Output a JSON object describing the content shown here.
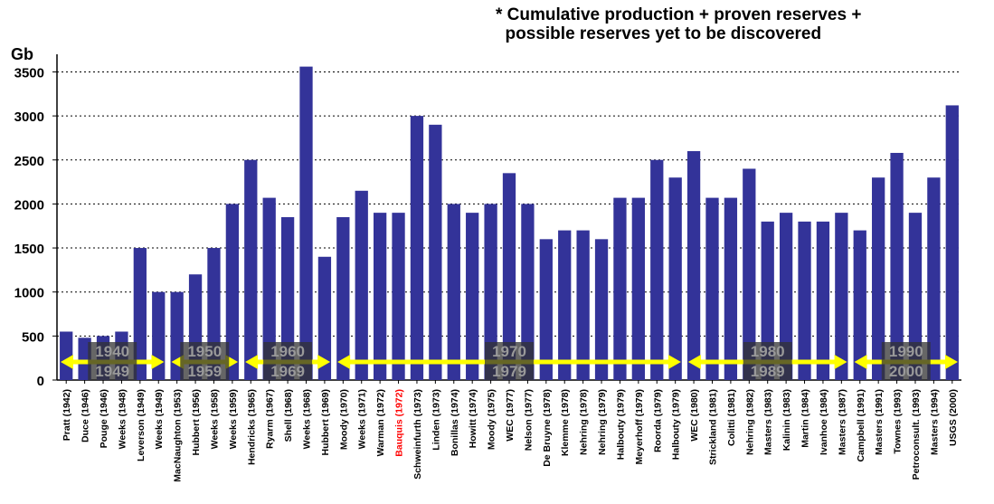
{
  "note": {
    "line1": "* Cumulative production + proven reserves +",
    "line2": "  possible reserves yet to be discovered"
  },
  "chart_data": {
    "type": "bar",
    "ylabel": "Gb",
    "ylim": [
      0,
      3500
    ],
    "yticks": [
      0,
      500,
      1000,
      1500,
      2000,
      2500,
      3000,
      3500
    ],
    "grid": true,
    "bar_color": "#333399",
    "highlight_color": "#ff0000",
    "categories": [
      "Pratt (1942)",
      "Duce (1946)",
      "Pouge (1946)",
      "Weeks (1948)",
      "Leverson (1949)",
      "Weeks (1949)",
      "MacNaughton (1953)",
      "Hubbert (1956)",
      "Weeks (1958)",
      "Weeks (1959)",
      "Hendricks (1965)",
      "Ryarm (1967)",
      "Shell (1968)",
      "Weeks (1968)",
      "Hubbert (1969)",
      "Moody (1970)",
      "Weeks (1971)",
      "Warman (1972)",
      "Bauquis (1972)",
      "Schweinfurth (1973)",
      "Linden (1973)",
      "Bonillas (1974)",
      "Howitt (1974)",
      "Moody (1975)",
      "WEC (1977)",
      "Nelson (1977)",
      "De Bruyne (1978)",
      "Klemme (1978)",
      "Nehring (1978)",
      "Nehring (1979)",
      "Halbouty (1979)",
      "Meyerhoff (1979)",
      "Roorda (1979)",
      "Halbouty (1979)",
      "WEC (1980)",
      "Strickland (1981)",
      "Colitti (1981)",
      "Nehring (1982)",
      "Masters (1983)",
      "Kalinin (1983)",
      "Martin (1984)",
      "Ivanhoe (1984)",
      "Masters (1987)",
      "Campbell (1991)",
      "Masters (1991)",
      "Townes (1993)",
      "Petroconsult. (1993)",
      "Masters (1994)",
      "USGS (2000)"
    ],
    "values": [
      550,
      480,
      500,
      550,
      1500,
      1000,
      1000,
      1200,
      1500,
      2000,
      2500,
      2070,
      1850,
      3560,
      1400,
      1850,
      2150,
      1900,
      1900,
      3000,
      2900,
      2000,
      1900,
      2000,
      2350,
      2000,
      1600,
      1700,
      1700,
      1600,
      2070,
      2070,
      2500,
      2300,
      2600,
      2070,
      2070,
      2400,
      1800,
      1900,
      1800,
      1800,
      1900,
      1700,
      2300,
      2580,
      1900,
      2300,
      3120
    ],
    "highlight": [
      "Bauquis (1972)"
    ],
    "decades": [
      {
        "top": "1940",
        "bottom": "1949"
      },
      {
        "top": "1950",
        "bottom": "1959"
      },
      {
        "top": "1960",
        "bottom": "1969"
      },
      {
        "top": "1970",
        "bottom": "1979"
      },
      {
        "top": "1980",
        "bottom": "1989"
      },
      {
        "top": "1990",
        "bottom": "2000"
      }
    ],
    "arrow_color": "#ffff00"
  }
}
